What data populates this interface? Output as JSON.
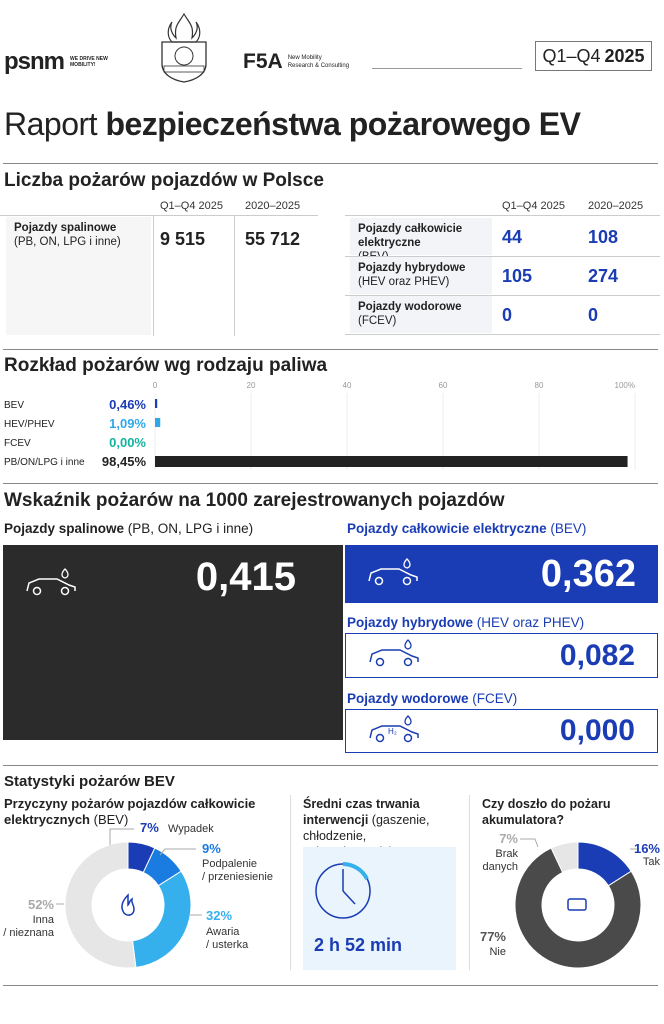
{
  "header": {
    "logo_psnm": "psnm",
    "psnm_tagline": "WE DRIVE NEW MOBILITY!",
    "logo_f5a": "F5A",
    "f5a_tagline_1": "New Mobility",
    "f5a_tagline_2": "Research & Consulting",
    "period_prefix": "Q1–Q4",
    "period_year": "2025",
    "seal": "Państwowa Straż Pożarna"
  },
  "title": {
    "light": "Raport",
    "bold": "bezpieczeństwa pożarowego EV"
  },
  "counts": {
    "heading": "Liczba pożarów pojazdów w Polsce",
    "col1": "Q1–Q4 2025",
    "col2": "2020–2025",
    "combustion": {
      "label_bold": "Pojazdy spalinowe",
      "label_rest": "(PB, ON, LPG i inne)",
      "v1": "9 515",
      "v2": "55 712"
    },
    "rows": [
      {
        "label_bold": "Pojazdy całkowicie elektryczne",
        "label_rest": "(BEV)",
        "v1": "44",
        "v2": "108"
      },
      {
        "label_bold": "Pojazdy hybrydowe",
        "label_rest": "(HEV oraz PHEV)",
        "v1": "105",
        "v2": "274"
      },
      {
        "label_bold": "Pojazdy wodorowe",
        "label_rest": "(FCEV)",
        "v1": "0",
        "v2": "0"
      }
    ]
  },
  "chart_data": [
    {
      "type": "bar",
      "title": "Rozkład pożarów wg rodzaju paliwa",
      "categories": [
        "BEV",
        "HEV/PHEV",
        "FCEV",
        "PB/ON/LPG i inne"
      ],
      "values": [
        0.46,
        1.09,
        0.0,
        98.45
      ],
      "labels": [
        "0,46%",
        "1,09%",
        "0,00%",
        "98,45%"
      ],
      "ticks": [
        "0",
        "20",
        "40",
        "60",
        "80",
        "100%"
      ],
      "xlim": [
        0,
        100
      ],
      "colors": [
        "#1a3cb4",
        "#2fa8e8",
        "#14b3a0",
        "#222222"
      ]
    },
    {
      "type": "pie",
      "title": "Przyczyny pożarów pojazdów całkowicie elektrycznych (BEV)",
      "categories": [
        "Wypadek",
        "Podpalenie / przeniesienie",
        "Awaria / usterka",
        "Inna / nieznana"
      ],
      "values": [
        7,
        9,
        32,
        52
      ],
      "colors": [
        "#1a3cb4",
        "#1a7be0",
        "#36b0ec",
        "#e6e6e6"
      ]
    },
    {
      "type": "pie",
      "title": "Czy doszło do pożaru akumulatora?",
      "categories": [
        "Tak",
        "Nie",
        "Brak danych"
      ],
      "values": [
        16,
        77,
        7
      ],
      "colors": [
        "#1a3cb4",
        "#4a4a4a",
        "#e6e6e6"
      ]
    }
  ],
  "rate": {
    "heading": "Wskaźnik pożarów na 1000 zarejestrowanych pojazdów",
    "combustion": {
      "label_bold": "Pojazdy spalinowe",
      "label_rest": "(PB, ON, LPG i inne)",
      "value": "0,415"
    },
    "bev": {
      "label_bold": "Pojazdy całkowicie elektryczne",
      "label_rest": "(BEV)",
      "value": "0,362"
    },
    "hev": {
      "label_bold": "Pojazdy hybrydowe",
      "label_rest": "(HEV oraz PHEV)",
      "value": "0,082"
    },
    "fcev": {
      "label_bold": "Pojazdy wodorowe",
      "label_rest": "(FCEV)",
      "value": "0,000",
      "h2": "H₂"
    }
  },
  "stats": {
    "heading": "Statystyki pożarów BEV",
    "causes": {
      "title_bold": "Przyczyny pożarów pojazdów całkowicie elektrycznych",
      "title_rest": "(BEV)",
      "items": [
        {
          "pct": "7%",
          "label": "Wypadek"
        },
        {
          "pct": "9%",
          "label": "Podpalenie / przeniesienie"
        },
        {
          "pct": "32%",
          "label": "Awaria / usterka"
        },
        {
          "pct": "52%",
          "label": "Inna / nieznana"
        }
      ]
    },
    "duration": {
      "title_bold": "Średni czas trwania interwencji",
      "title_rest": "(gaszenie, chłodzenie, zabezpieczanie)",
      "value": "2 h 52 min"
    },
    "battery": {
      "title": "Czy doszło do pożaru akumulatora?",
      "items": [
        {
          "pct": "16%",
          "label": "Tak"
        },
        {
          "pct": "77%",
          "label": "Nie"
        },
        {
          "pct": "7%",
          "label": "Brak danych"
        }
      ]
    }
  }
}
